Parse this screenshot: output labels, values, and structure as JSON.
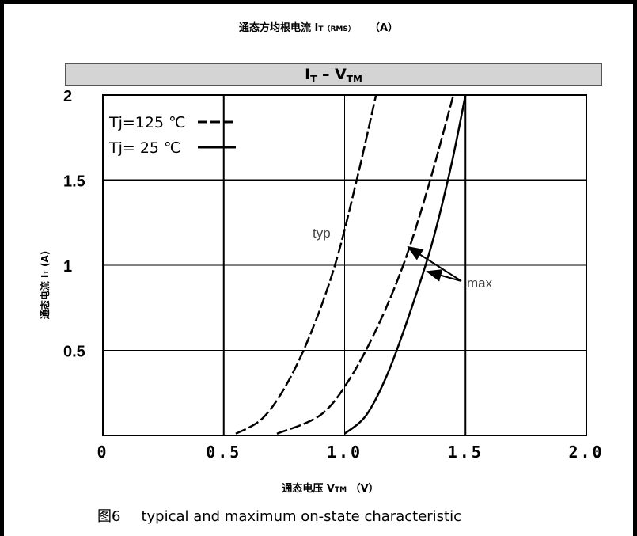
{
  "top_axis": {
    "label_main": "通态方均根电流 I",
    "label_sub": "T（RMS）",
    "label_unit": "（A）"
  },
  "title": {
    "main": "I",
    "sub1": "T",
    "dash": " – V",
    "sub2": "TM"
  },
  "y_axis_label": {
    "main": "通态电流 I",
    "sub": "T",
    "unit": "  (A)"
  },
  "x_axis_label": {
    "main": "通态电压 V",
    "sub": "TM",
    "unit": "  （V）"
  },
  "caption": {
    "figure": "图6",
    "text": "typical and maximum on-state characteristic"
  },
  "legend": [
    {
      "label": "Tj=125 ℃",
      "style": "dashed"
    },
    {
      "label": "Tj=  25 ℃",
      "style": "solid"
    }
  ],
  "annotations": {
    "typ": "typ",
    "max": "max"
  },
  "colors": {
    "line": "#000000",
    "grid": "#000000",
    "title_bg": "#d4d4d4"
  },
  "chart_data": {
    "type": "line",
    "xlim": [
      0,
      2.0
    ],
    "ylim": [
      0,
      2
    ],
    "x_ticks": [
      "0",
      "0.5",
      "1.0",
      "1.5",
      "2.0"
    ],
    "y_ticks": [
      "2",
      "1.5",
      "1",
      "0.5"
    ],
    "series": [
      {
        "name": "Tj=125 ℃",
        "style": "dashed",
        "x": [
          0.55,
          0.66,
          0.76,
          0.86,
          0.96,
          1.05,
          1.13
        ],
        "y": [
          0.01,
          0.1,
          0.3,
          0.6,
          1.0,
          1.5,
          2.0
        ]
      },
      {
        "name": "Tj=125 ℃",
        "style": "dashed",
        "x": [
          0.72,
          0.9,
          1.02,
          1.14,
          1.25,
          1.35,
          1.45
        ],
        "y": [
          0.01,
          0.12,
          0.33,
          0.65,
          1.03,
          1.48,
          2.0
        ]
      },
      {
        "name": "Tj=  25 ℃",
        "style": "solid",
        "x": [
          1.0,
          1.09,
          1.18,
          1.27,
          1.36,
          1.44,
          1.5
        ],
        "y": [
          0.01,
          0.12,
          0.37,
          0.72,
          1.12,
          1.58,
          2.0
        ]
      }
    ]
  }
}
